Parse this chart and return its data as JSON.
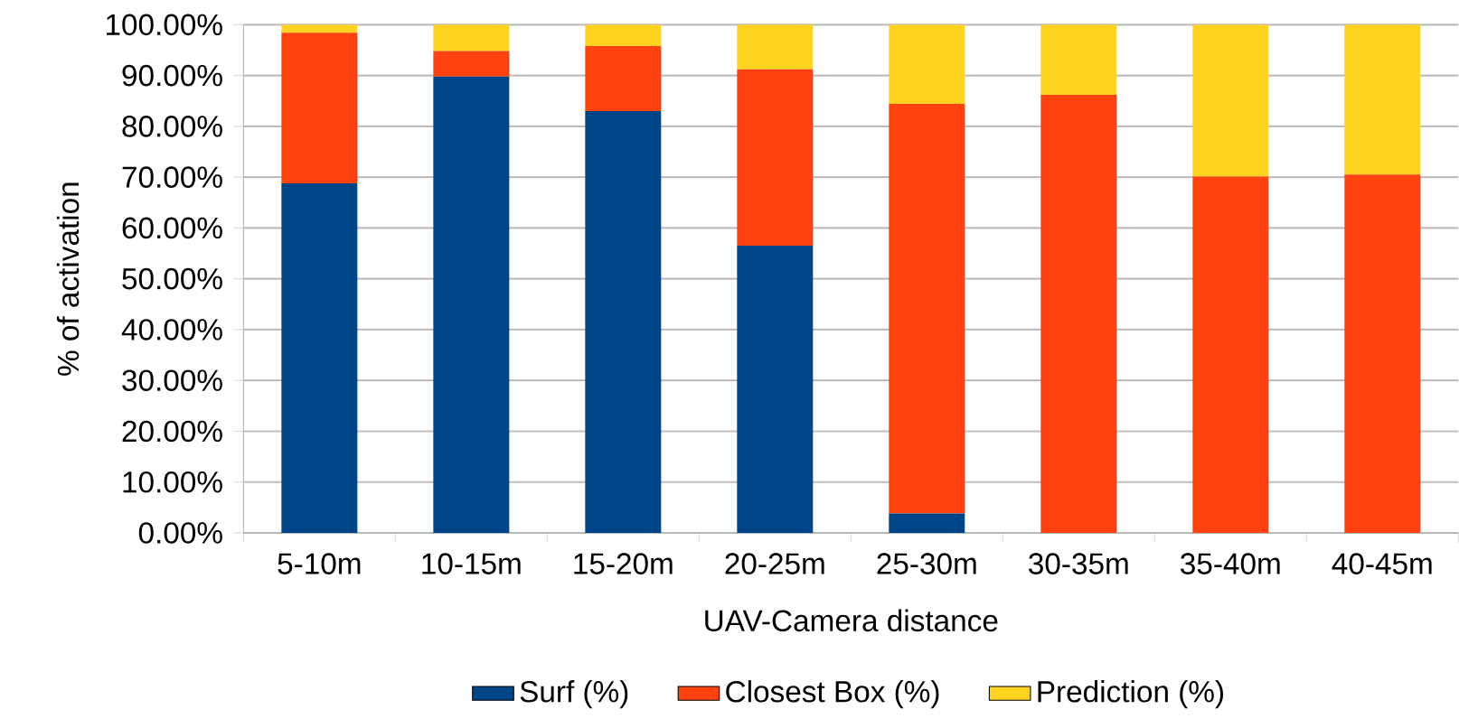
{
  "chart_data": {
    "type": "bar",
    "stacked": true,
    "xlabel": "UAV-Camera distance",
    "ylabel": "% of activation",
    "categories": [
      "5-10m",
      "10-15m",
      "15-20m",
      "20-25m",
      "25-30m",
      "30-35m",
      "35-40m",
      "40-45m"
    ],
    "series": [
      {
        "name": "Surf (%)",
        "color": "#004586",
        "values": [
          68.8,
          89.8,
          83.0,
          56.5,
          3.8,
          0,
          0,
          0
        ]
      },
      {
        "name": "Closest Box (%)",
        "color": "#ff420e",
        "values": [
          29.6,
          5.0,
          12.8,
          34.7,
          80.6,
          86.2,
          70.1,
          70.5
        ]
      },
      {
        "name": "Prediction (%)",
        "color": "#ffd320",
        "values": [
          1.6,
          5.2,
          4.2,
          8.8,
          15.6,
          13.8,
          29.9,
          29.5
        ]
      }
    ],
    "ylim": [
      0,
      100
    ],
    "yticks": [
      {
        "value": 0,
        "label": "0.00%"
      },
      {
        "value": 10,
        "label": "10.00%"
      },
      {
        "value": 20,
        "label": "20.00%"
      },
      {
        "value": 30,
        "label": "30.00%"
      },
      {
        "value": 40,
        "label": "40.00%"
      },
      {
        "value": 50,
        "label": "50.00%"
      },
      {
        "value": 60,
        "label": "60.00%"
      },
      {
        "value": 70,
        "label": "70.00%"
      },
      {
        "value": 80,
        "label": "80.00%"
      },
      {
        "value": 90,
        "label": "90.00%"
      },
      {
        "value": 100,
        "label": "100.00%"
      }
    ],
    "grid": "y",
    "legend": "bottom"
  }
}
